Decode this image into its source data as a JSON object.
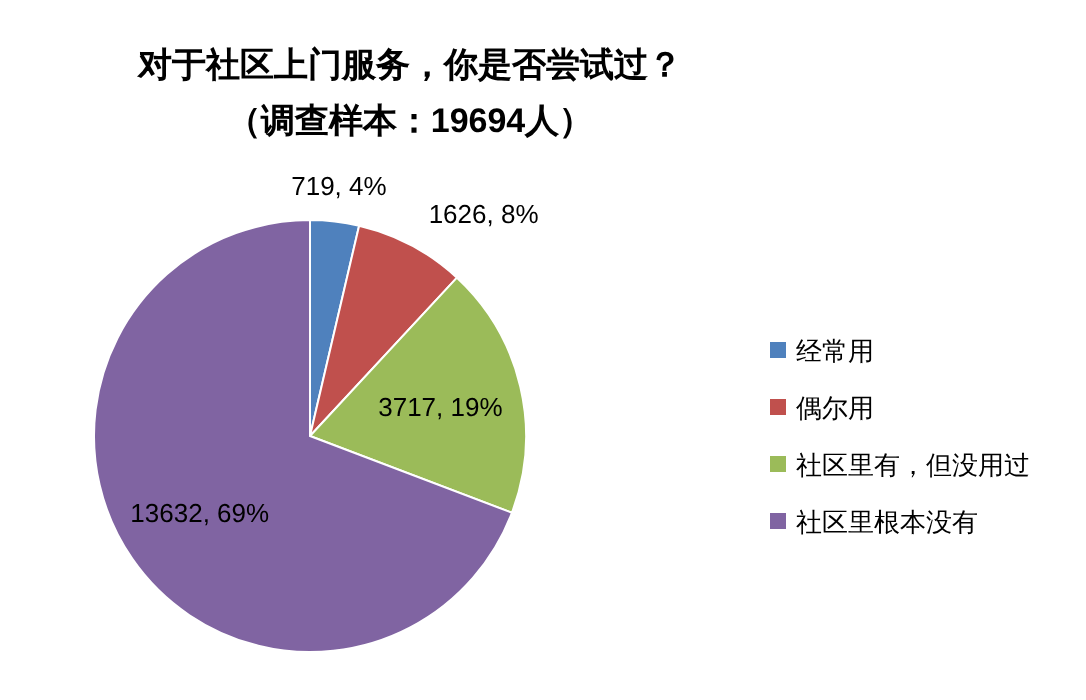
{
  "chart_data": {
    "type": "pie",
    "title": "对于社区上门服务，你是否尝试过？",
    "subtitle": "（调查样本：19694人）",
    "categories": [
      "经常用",
      "偶尔用",
      "社区里有，但没用过",
      "社区里根本没有"
    ],
    "values": [
      719,
      1626,
      3717,
      13632
    ],
    "colors": [
      "#4f81bd",
      "#c0504d",
      "#9bbb59",
      "#8064a2"
    ],
    "value_labels": [
      "719, 4%",
      "1626, 8%",
      "3717, 19%",
      "13632, 69%"
    ],
    "legend": "right"
  }
}
